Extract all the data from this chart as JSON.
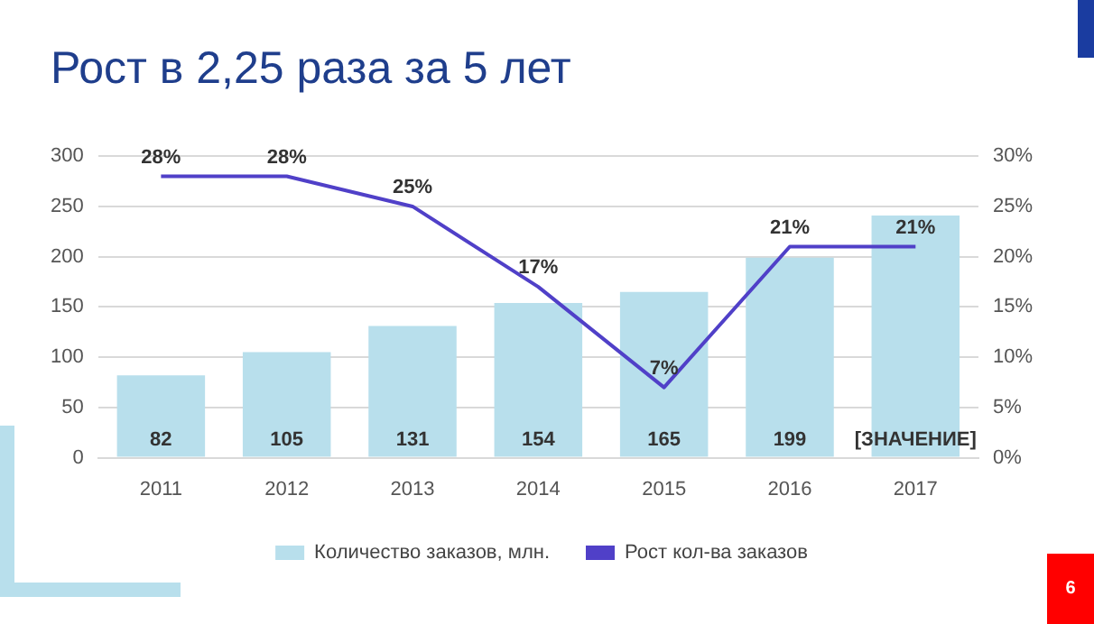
{
  "chart_data": {
    "type": "bar",
    "title": "Рост в 2,25 раза за 5 лет",
    "categories": [
      "2011",
      "2012",
      "2013",
      "2014",
      "2015",
      "2016",
      "2017"
    ],
    "series": [
      {
        "name": "Количество заказов, млн.",
        "color": "#b8dfec",
        "values": [
          82,
          105,
          131,
          154,
          165,
          199,
          241
        ],
        "value_labels": [
          "82",
          "105",
          "131",
          "154",
          "165",
          "199",
          "[ЗНАЧЕНИЕ]"
        ]
      },
      {
        "name": "Рост кол-ва заказов",
        "type": "line",
        "axis": "y2",
        "color": "#5040c8",
        "values": [
          28,
          28,
          25,
          17,
          7,
          21,
          21
        ],
        "value_labels": [
          "28%",
          "28%",
          "25%",
          "17%",
          "7%",
          "21%",
          "21%"
        ]
      }
    ],
    "ylim": [
      0,
      300
    ],
    "yticks": [
      0,
      50,
      100,
      150,
      200,
      250,
      300
    ],
    "y2lim": [
      0,
      30
    ],
    "y2ticks": [
      {
        "value": 0,
        "label": "0%"
      },
      {
        "value": 5,
        "label": "5%"
      },
      {
        "value": 10,
        "label": "10%"
      },
      {
        "value": 15,
        "label": "15%"
      },
      {
        "value": 20,
        "label": "20%"
      },
      {
        "value": 25,
        "label": "25%"
      },
      {
        "value": 30,
        "label": "30%"
      }
    ],
    "grid": "y",
    "legend": "bottom",
    "marker": "none",
    "line_style": "solid",
    "annotations": [
      "6"
    ]
  }
}
